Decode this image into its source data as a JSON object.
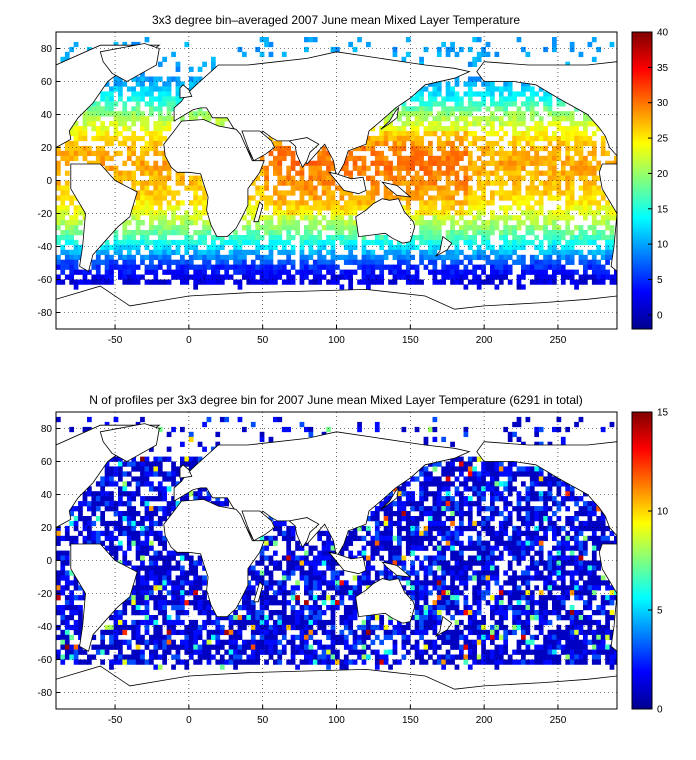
{
  "figure": {
    "top": {
      "title": "3x3 degree bin–averaged 2007 June mean Mixed Layer Temperature",
      "colorbar_ticks": [
        "0",
        "5",
        "10",
        "15",
        "20",
        "25",
        "30",
        "35",
        "40"
      ],
      "colorbar_range": [
        -2,
        40
      ]
    },
    "bottom": {
      "title": "N of profiles per 3x3 degree bin for 2007 June mean Mixed Layer Temperature  (6291 in total)",
      "colorbar_ticks": [
        "0",
        "5",
        "10",
        "15"
      ],
      "colorbar_range": [
        0,
        15
      ]
    },
    "x_ticks": [
      "-50",
      "0",
      "50",
      "100",
      "150",
      "200",
      "250"
    ],
    "y_ticks": [
      "80",
      "60",
      "40",
      "20",
      "0",
      "-20",
      "-40",
      "-60",
      "-80"
    ],
    "xlim": [
      -90,
      290
    ],
    "ylim": [
      -90,
      90
    ]
  },
  "chart_data": [
    {
      "type": "heatmap",
      "title": "3x3 degree bin–averaged 2007 June mean Mixed Layer Temperature",
      "xlabel": "",
      "ylabel": "",
      "xlim": [
        -90,
        290
      ],
      "ylim": [
        -90,
        90
      ],
      "colorbar": {
        "min": -2,
        "max": 40,
        "ticks": [
          0,
          5,
          10,
          15,
          20,
          25,
          30,
          35,
          40
        ]
      },
      "grid": true,
      "bin_size_deg": 3,
      "zonal_profile": [
        {
          "lat": 60,
          "value": 10
        },
        {
          "lat": 50,
          "value": 14
        },
        {
          "lat": 40,
          "value": 20
        },
        {
          "lat": 30,
          "value": 24
        },
        {
          "lat": 20,
          "value": 27
        },
        {
          "lat": 10,
          "value": 28
        },
        {
          "lat": 0,
          "value": 27
        },
        {
          "lat": -10,
          "value": 26
        },
        {
          "lat": -20,
          "value": 23
        },
        {
          "lat": -30,
          "value": 19
        },
        {
          "lat": -40,
          "value": 13
        },
        {
          "lat": -50,
          "value": 6
        },
        {
          "lat": -60,
          "value": 2
        }
      ]
    },
    {
      "type": "heatmap",
      "title": "N of profiles per 3x3 degree bin for 2007 June mean Mixed Layer Temperature  (6291 in total)",
      "xlabel": "",
      "ylabel": "",
      "xlim": [
        -90,
        290
      ],
      "ylim": [
        -90,
        90
      ],
      "colorbar": {
        "min": 0,
        "max": 15,
        "ticks": [
          0,
          5,
          10,
          15
        ]
      },
      "grid": true,
      "bin_size_deg": 3,
      "total_profiles": 6291,
      "typical_count_per_bin": [
        1,
        3
      ],
      "max_count_per_bin": 15
    }
  ]
}
